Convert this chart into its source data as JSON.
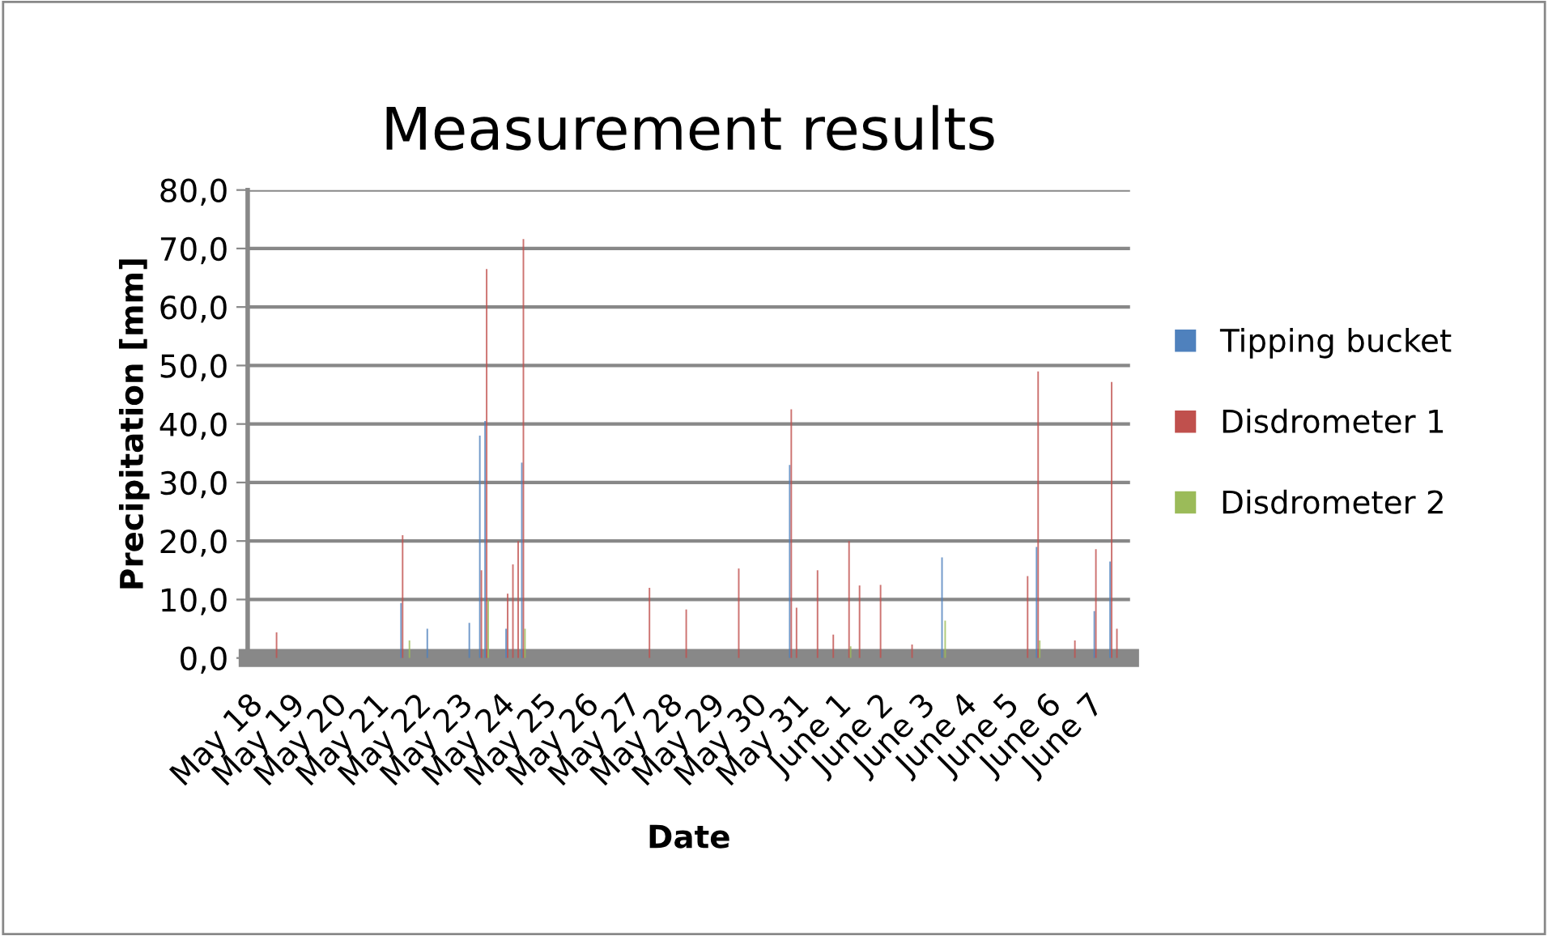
{
  "chart_data": {
    "type": "bar",
    "title": "Measurement results",
    "xlabel": "Date",
    "ylabel": "Precipitation [mm]",
    "categories": [
      "May 18",
      null,
      null,
      null,
      null,
      null,
      null,
      null,
      "May 19",
      null,
      null,
      null,
      null,
      null,
      null,
      null,
      "May 20",
      null,
      null,
      null,
      null,
      null,
      null,
      null,
      "May 21",
      null,
      null,
      null,
      null,
      null,
      null,
      null,
      "May 22",
      null,
      null,
      null,
      null,
      null,
      null,
      null,
      "May 23",
      null,
      null,
      null,
      null,
      null,
      null,
      null,
      "May 24",
      null,
      null,
      null,
      null,
      null,
      null,
      null,
      "May 25",
      null,
      null,
      null,
      null,
      null,
      null,
      null,
      "May 26",
      null,
      null,
      null,
      null,
      null,
      null,
      null,
      "May 27",
      null,
      null,
      null,
      null,
      null,
      null,
      null,
      "May 28",
      null,
      null,
      null,
      null,
      null,
      null,
      null,
      "May 29",
      null,
      null,
      null,
      null,
      null,
      null,
      null,
      "May 30",
      null,
      null,
      null,
      null,
      null,
      null,
      null,
      "May 31",
      null,
      null,
      null,
      null,
      null,
      null,
      null,
      "June 1",
      null,
      null,
      null,
      null,
      null,
      null,
      null,
      "June 2",
      null,
      null,
      null,
      null,
      null,
      null,
      null,
      "June 3",
      null,
      null,
      null,
      null,
      null,
      null,
      null,
      "June 4",
      null,
      null,
      null,
      null,
      null,
      null,
      null,
      "June 5",
      null,
      null,
      null,
      null,
      null,
      null,
      null,
      "June 6",
      null,
      null,
      null,
      null,
      null,
      null,
      null,
      "June 7",
      null,
      null,
      null,
      null,
      null,
      null,
      null
    ],
    "series": [
      {
        "name": "Tipping bucket",
        "color": "#4f81bd",
        "values": [
          0,
          0,
          0,
          0,
          0,
          0,
          0,
          0,
          0,
          0,
          0,
          0,
          0,
          0,
          0,
          0,
          0,
          0,
          0,
          0,
          0,
          0,
          0,
          0,
          0,
          0,
          0,
          0,
          0,
          9.4,
          0,
          0,
          0,
          0,
          5,
          0,
          0,
          0,
          0,
          0,
          0,
          0,
          6,
          0,
          38,
          40.5,
          0,
          0,
          0,
          5,
          0,
          0,
          33.4,
          0,
          0,
          0,
          0,
          0,
          0,
          0,
          0,
          0,
          0,
          0,
          0,
          0,
          0,
          0,
          0,
          0,
          0,
          0,
          0,
          0,
          0,
          0,
          0,
          0,
          0,
          0,
          0,
          0,
          0,
          0,
          0,
          0,
          0,
          0,
          0,
          0,
          0,
          0,
          0,
          0,
          0,
          0,
          0,
          0,
          0,
          0,
          0,
          0,
          0,
          33,
          0,
          0,
          0,
          0,
          0,
          0,
          0,
          0,
          0,
          0,
          0,
          0,
          0,
          0,
          0,
          0,
          0,
          0,
          0,
          0,
          0,
          0,
          0,
          0,
          0,
          0,
          0,
          0,
          17.2,
          0,
          0,
          0,
          0,
          0,
          0,
          0,
          0,
          0,
          0,
          0,
          0,
          0,
          0,
          0,
          0,
          0,
          19,
          0,
          0,
          0,
          0,
          0,
          0,
          0,
          0,
          0,
          0,
          8,
          0,
          0,
          16.5,
          0,
          0,
          0
        ]
      },
      {
        "name": "Disdrometer 1",
        "color": "#c0504d",
        "values": [
          0,
          0,
          0,
          0,
          0,
          4.4,
          0,
          0,
          0,
          0,
          0,
          0,
          0,
          0,
          0,
          0,
          0,
          0,
          0,
          0,
          0,
          0,
          0,
          0,
          0,
          0,
          0,
          0,
          0,
          21,
          0,
          0,
          0,
          0,
          0,
          0,
          0,
          0,
          0,
          0,
          0,
          0,
          0,
          0,
          15,
          66.5,
          0,
          0,
          0,
          11,
          16,
          20,
          71.6,
          0,
          0,
          0,
          0,
          0,
          0,
          0,
          0,
          0,
          0,
          0,
          0,
          0,
          0,
          0,
          0,
          0,
          0,
          0,
          0,
          0,
          0,
          0,
          12,
          0,
          0,
          0,
          0,
          0,
          0,
          8.3,
          0,
          0,
          0,
          0,
          0,
          0,
          0,
          0,
          0,
          15.3,
          0,
          0,
          0,
          0,
          0,
          0,
          0,
          0,
          0,
          42.5,
          8.6,
          0,
          0,
          0,
          15,
          0,
          0,
          4,
          0,
          0,
          20,
          0,
          12.4,
          0,
          0,
          0,
          12.5,
          0,
          0,
          0,
          0,
          0,
          2.3,
          0,
          0,
          0,
          0,
          0,
          0,
          0,
          0,
          0,
          0,
          0,
          0,
          0,
          0,
          0,
          0,
          0,
          0,
          0,
          0,
          0,
          14,
          0,
          49,
          0,
          0,
          0,
          0,
          0,
          0,
          3,
          0,
          0,
          0,
          18.6,
          0,
          0,
          47.2,
          5,
          0,
          0
        ]
      },
      {
        "name": "Disdrometer 2",
        "color": "#9bbb59",
        "values": [
          0,
          0,
          0,
          0,
          0,
          0,
          0,
          0,
          0,
          0,
          0,
          0,
          0,
          0,
          0,
          0,
          0,
          0,
          0,
          0,
          0,
          0,
          0,
          0,
          0,
          0,
          0,
          0,
          0,
          0,
          3,
          0,
          0,
          0,
          0,
          0,
          0,
          0,
          0,
          0,
          0,
          0,
          0,
          0,
          0,
          10,
          0,
          0,
          0,
          0,
          0,
          0,
          5,
          0,
          0,
          0,
          0,
          0,
          0,
          0,
          0,
          0,
          0,
          0,
          0,
          0,
          0,
          0,
          0,
          0,
          0,
          0,
          0,
          0,
          0,
          0,
          0,
          0,
          0,
          0,
          0,
          0,
          0,
          0,
          0,
          0,
          0,
          0,
          0,
          0,
          0,
          0,
          0,
          0,
          0,
          0,
          0,
          0,
          0,
          0,
          0,
          0,
          0,
          0,
          0,
          0,
          0,
          0,
          0,
          0,
          0,
          0,
          0,
          0,
          2,
          0,
          0,
          0,
          0,
          0,
          0,
          0,
          0,
          0,
          0,
          0,
          0,
          0,
          0,
          0,
          0,
          0,
          6.4,
          0,
          0,
          0,
          0,
          0,
          0,
          0,
          0,
          0,
          0,
          0,
          0,
          0,
          0,
          0,
          0,
          0,
          3,
          0,
          0,
          0,
          0,
          0,
          0,
          0,
          0,
          0,
          0,
          0,
          0,
          0,
          0,
          0,
          0,
          0
        ]
      }
    ],
    "ylim": [
      0,
      80
    ],
    "yticks": [
      {
        "value": 0,
        "label": "0,0"
      },
      {
        "value": 10,
        "label": "10,0"
      },
      {
        "value": 20,
        "label": "20,0"
      },
      {
        "value": 30,
        "label": "30,0"
      },
      {
        "value": 40,
        "label": "40,0"
      },
      {
        "value": 50,
        "label": "50,0"
      },
      {
        "value": 60,
        "label": "60,0"
      },
      {
        "value": 70,
        "label": "70,0"
      },
      {
        "value": 80,
        "label": "80,0"
      }
    ],
    "grid": "y",
    "legend": "right"
  }
}
